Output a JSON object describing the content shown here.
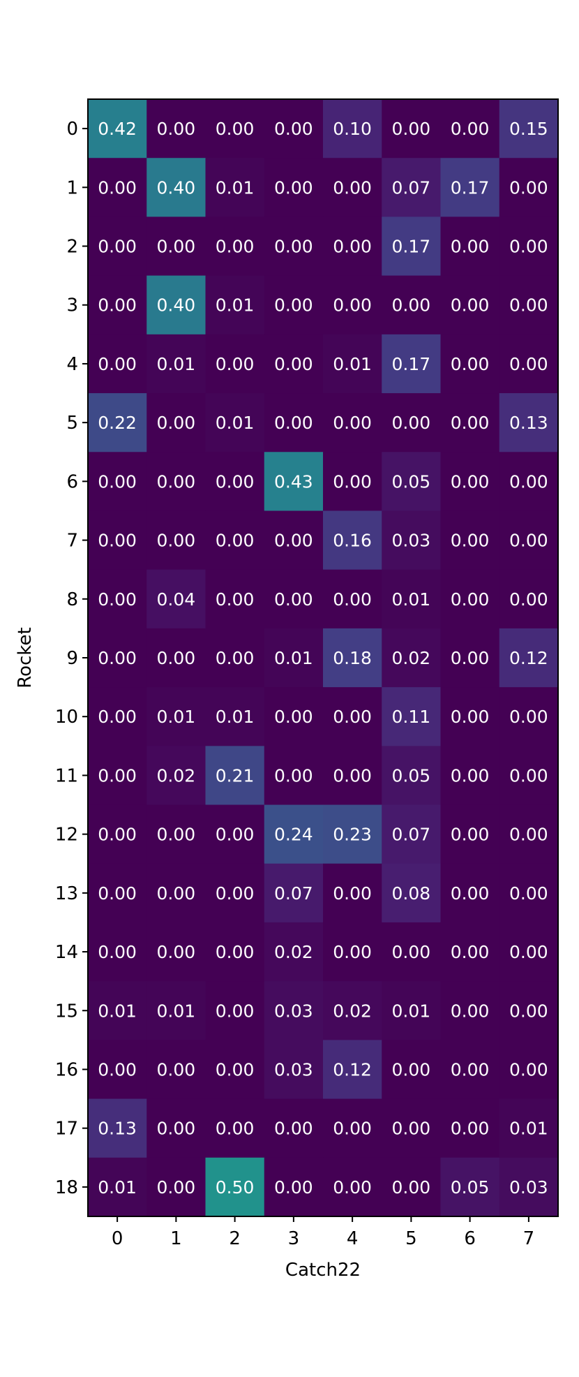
{
  "chart_data": {
    "type": "heatmap",
    "title": "",
    "xlabel": "Catch22",
    "ylabel": "Rocket",
    "x_categories": [
      "0",
      "1",
      "2",
      "3",
      "4",
      "5",
      "6",
      "7"
    ],
    "y_categories": [
      "0",
      "1",
      "2",
      "3",
      "4",
      "5",
      "6",
      "7",
      "8",
      "9",
      "10",
      "11",
      "12",
      "13",
      "14",
      "15",
      "16",
      "17",
      "18"
    ],
    "values": [
      [
        0.42,
        0.0,
        0.0,
        0.0,
        0.1,
        0.0,
        0.0,
        0.15
      ],
      [
        0.0,
        0.4,
        0.01,
        0.0,
        0.0,
        0.07,
        0.17,
        0.0
      ],
      [
        0.0,
        0.0,
        0.0,
        0.0,
        0.0,
        0.17,
        0.0,
        0.0
      ],
      [
        0.0,
        0.4,
        0.01,
        0.0,
        0.0,
        0.0,
        0.0,
        0.0
      ],
      [
        0.0,
        0.01,
        0.0,
        0.0,
        0.01,
        0.17,
        0.0,
        0.0
      ],
      [
        0.22,
        0.0,
        0.01,
        0.0,
        0.0,
        0.0,
        0.0,
        0.13
      ],
      [
        0.0,
        0.0,
        0.0,
        0.43,
        0.0,
        0.05,
        0.0,
        0.0
      ],
      [
        0.0,
        0.0,
        0.0,
        0.0,
        0.16,
        0.03,
        0.0,
        0.0
      ],
      [
        0.0,
        0.04,
        0.0,
        0.0,
        0.0,
        0.01,
        0.0,
        0.0
      ],
      [
        0.0,
        0.0,
        0.0,
        0.01,
        0.18,
        0.02,
        0.0,
        0.12
      ],
      [
        0.0,
        0.01,
        0.01,
        0.0,
        0.0,
        0.11,
        0.0,
        0.0
      ],
      [
        0.0,
        0.02,
        0.21,
        0.0,
        0.0,
        0.05,
        0.0,
        0.0
      ],
      [
        0.0,
        0.0,
        0.0,
        0.24,
        0.23,
        0.07,
        0.0,
        0.0
      ],
      [
        0.0,
        0.0,
        0.0,
        0.07,
        0.0,
        0.08,
        0.0,
        0.0
      ],
      [
        0.0,
        0.0,
        0.0,
        0.02,
        0.0,
        0.0,
        0.0,
        0.0
      ],
      [
        0.01,
        0.01,
        0.0,
        0.03,
        0.02,
        0.01,
        0.0,
        0.0
      ],
      [
        0.0,
        0.0,
        0.0,
        0.03,
        0.12,
        0.0,
        0.0,
        0.0
      ],
      [
        0.13,
        0.0,
        0.0,
        0.0,
        0.0,
        0.0,
        0.0,
        0.01
      ],
      [
        0.01,
        0.0,
        0.5,
        0.0,
        0.0,
        0.0,
        0.05,
        0.03
      ]
    ],
    "value_range": [
      0,
      0.5
    ],
    "colormap": "viridis",
    "grid": false,
    "legend": "none"
  }
}
